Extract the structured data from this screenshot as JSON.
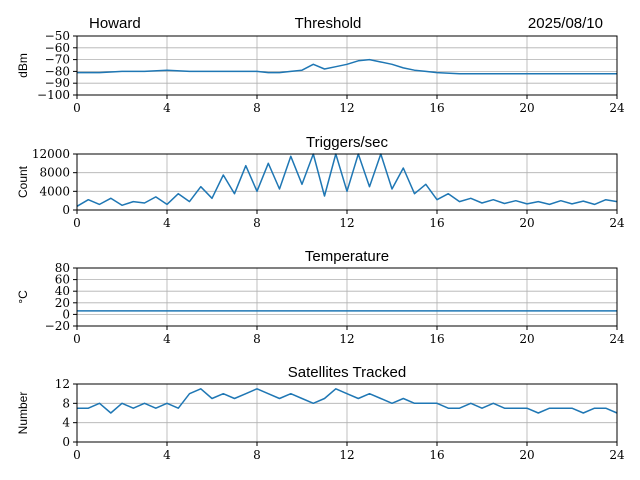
{
  "header": {
    "station": "Howard",
    "title": "Threshold",
    "date": "2025/08/10"
  },
  "colors": {
    "series": "#1f77b4",
    "grid": "#b0b0b0"
  },
  "chart_data": [
    {
      "id": "threshold",
      "type": "line",
      "title": "",
      "xlabel": "",
      "ylabel": "dBm",
      "xlim": [
        0,
        24
      ],
      "ylim": [
        -100,
        -50
      ],
      "xticks": [
        0,
        4,
        8,
        12,
        16,
        20,
        24
      ],
      "yticks": [
        -100,
        -90,
        -80,
        -70,
        -60,
        -50
      ],
      "yticklabels": [
        "−100",
        "−90",
        "−80",
        "−70",
        "−60",
        "−50"
      ],
      "grid": true,
      "x": [
        0,
        1,
        2,
        3,
        4,
        5,
        6,
        7,
        8,
        8.5,
        9,
        9.5,
        10,
        10.5,
        11,
        11.5,
        12,
        12.5,
        13,
        13.5,
        14,
        14.5,
        15,
        15.5,
        16,
        17,
        18,
        20,
        22,
        24
      ],
      "y": [
        -81,
        -81,
        -80,
        -80,
        -79,
        -80,
        -80,
        -80,
        -80,
        -81,
        -81,
        -80,
        -79,
        -74,
        -78,
        -76,
        -74,
        -71,
        -70,
        -72,
        -74,
        -77,
        -79,
        -80,
        -81,
        -82,
        -82,
        -82,
        -82,
        -82
      ]
    },
    {
      "id": "triggers",
      "type": "line",
      "title": "Triggers/sec",
      "xlabel": "",
      "ylabel": "Count",
      "xlim": [
        0,
        24
      ],
      "ylim": [
        0,
        12000
      ],
      "xticks": [
        0,
        4,
        8,
        12,
        16,
        20,
        24
      ],
      "yticks": [
        0,
        4000,
        8000,
        12000
      ],
      "yticklabels": [
        "0",
        "4000",
        "8000",
        "12000"
      ],
      "grid": true,
      "x": [
        0,
        0.5,
        1,
        1.5,
        2,
        2.5,
        3,
        3.5,
        4,
        4.5,
        5,
        5.5,
        6,
        6.5,
        7,
        7.5,
        8,
        8.5,
        9,
        9.5,
        10,
        10.5,
        11,
        11.5,
        12,
        12.5,
        13,
        13.5,
        14,
        14.5,
        15,
        15.5,
        16,
        16.5,
        17,
        17.5,
        18,
        18.5,
        19,
        19.5,
        20,
        20.5,
        21,
        21.5,
        22,
        22.5,
        23,
        23.5,
        24
      ],
      "y": [
        800,
        2200,
        1200,
        2500,
        1000,
        1800,
        1500,
        2800,
        1200,
        3500,
        1800,
        5000,
        2500,
        7500,
        3500,
        9500,
        4000,
        10000,
        4500,
        11500,
        5500,
        12000,
        3000,
        12000,
        4000,
        12000,
        5000,
        12000,
        4500,
        9000,
        3500,
        5500,
        2200,
        3500,
        1800,
        2500,
        1500,
        2200,
        1400,
        2000,
        1300,
        1800,
        1200,
        2000,
        1300,
        1900,
        1200,
        2200,
        1800
      ]
    },
    {
      "id": "temperature",
      "type": "line",
      "title": "Temperature",
      "xlabel": "",
      "ylabel": "°C",
      "xlim": [
        0,
        24
      ],
      "ylim": [
        -20,
        80
      ],
      "xticks": [
        0,
        4,
        8,
        12,
        16,
        20,
        24
      ],
      "yticks": [
        -20,
        0,
        20,
        40,
        60,
        80
      ],
      "yticklabels": [
        "−20",
        "0",
        "20",
        "40",
        "60",
        "80"
      ],
      "grid": true,
      "x": [
        0,
        24
      ],
      "y": [
        6,
        6
      ]
    },
    {
      "id": "satellites",
      "type": "line",
      "title": "Satellites Tracked",
      "xlabel": "",
      "ylabel": "Number",
      "xlim": [
        0,
        24
      ],
      "ylim": [
        0,
        12
      ],
      "xticks": [
        0,
        4,
        8,
        12,
        16,
        20,
        24
      ],
      "yticks": [
        0,
        4,
        8,
        12
      ],
      "yticklabels": [
        "0",
        "4",
        "8",
        "12"
      ],
      "grid": true,
      "x": [
        0,
        0.5,
        1,
        1.5,
        2,
        2.5,
        3,
        3.5,
        4,
        4.5,
        5,
        5.5,
        6,
        6.5,
        7,
        7.5,
        8,
        8.5,
        9,
        9.5,
        10,
        10.5,
        11,
        11.5,
        12,
        12.5,
        13,
        13.5,
        14,
        14.5,
        15,
        15.5,
        16,
        16.5,
        17,
        17.5,
        18,
        18.5,
        19,
        19.5,
        20,
        20.5,
        21,
        21.5,
        22,
        22.5,
        23,
        23.5,
        24
      ],
      "y": [
        7,
        7,
        8,
        6,
        8,
        7,
        8,
        7,
        8,
        7,
        10,
        11,
        9,
        10,
        9,
        10,
        11,
        10,
        9,
        10,
        9,
        8,
        9,
        11,
        10,
        9,
        10,
        9,
        8,
        9,
        8,
        8,
        8,
        7,
        7,
        8,
        7,
        8,
        7,
        7,
        7,
        6,
        7,
        7,
        7,
        6,
        7,
        7,
        6
      ]
    }
  ]
}
